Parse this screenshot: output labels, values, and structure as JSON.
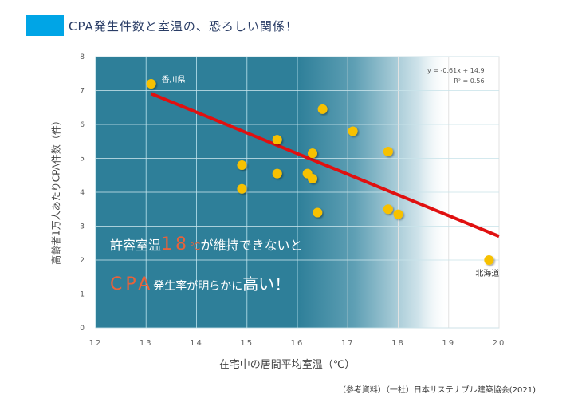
{
  "header": {
    "title": "CPA発生件数と室温の、恐ろしい関係！",
    "accent_color": "#00a5e6"
  },
  "callout": {
    "line1_prefix": "許容室温",
    "line1_number": "18",
    "line1_unit": "℃",
    "line1_suffix": "が維持できないと",
    "line2_accent": "CPA",
    "line2_mid": "発生率が明らかに",
    "line2_big": "高い",
    "line2_end": "！"
  },
  "regression": {
    "equation": "y = -0.61x + 14.9",
    "r2": "R² = 0.56",
    "slope": -0.61,
    "intercept": 14.9
  },
  "source": "（参考資料）（一社）日本サステナブル建築協会(2021)",
  "chart_data": {
    "type": "scatter",
    "title": "CPA発生件数と室温の、恐ろしい関係！",
    "xlabel": "在宅中の居間平均室温（℃）",
    "ylabel": "高齢者1万人あたりCPA件数（件）",
    "xlim": [
      12,
      20
    ],
    "ylim": [
      0,
      8
    ],
    "xticks": [
      "12",
      "13",
      "14",
      "15",
      "16",
      "17",
      "18",
      "19",
      "20"
    ],
    "yticks": [
      "0",
      "1",
      "2",
      "3",
      "4",
      "5",
      "6",
      "7",
      "8"
    ],
    "grid": true,
    "shaded_region_below_x": 16,
    "points": [
      {
        "x": 13.1,
        "y": 7.2,
        "label": "香川県"
      },
      {
        "x": 14.9,
        "y": 4.8
      },
      {
        "x": 14.9,
        "y": 4.1
      },
      {
        "x": 15.6,
        "y": 5.55
      },
      {
        "x": 15.6,
        "y": 4.55
      },
      {
        "x": 16.3,
        "y": 5.15
      },
      {
        "x": 16.2,
        "y": 4.55
      },
      {
        "x": 16.3,
        "y": 4.4
      },
      {
        "x": 16.4,
        "y": 3.4
      },
      {
        "x": 16.5,
        "y": 6.45
      },
      {
        "x": 17.1,
        "y": 5.8
      },
      {
        "x": 17.8,
        "y": 5.2
      },
      {
        "x": 17.8,
        "y": 3.5
      },
      {
        "x": 18.0,
        "y": 3.35
      },
      {
        "x": 19.8,
        "y": 2.0,
        "label": "北海道"
      }
    ],
    "trendline": {
      "x_start": 13.1,
      "x_end": 20
    },
    "colors": {
      "point": "#f7c100",
      "trend": "#e01010",
      "shade": "#2e7f99"
    }
  }
}
